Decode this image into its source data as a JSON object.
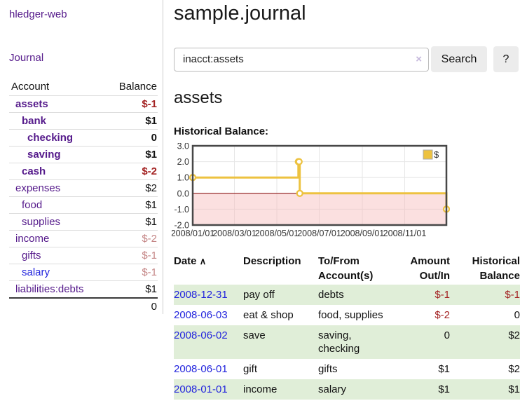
{
  "app": {
    "title": "hledger-web"
  },
  "sidebar": {
    "journal_link": "Journal",
    "accounts": {
      "header": {
        "account": "Account",
        "balance": "Balance"
      },
      "rows": [
        {
          "name": "assets",
          "balance": "$-1"
        },
        {
          "name": "bank",
          "balance": "$1"
        },
        {
          "name": "checking",
          "balance": "0"
        },
        {
          "name": "saving",
          "balance": "$1"
        },
        {
          "name": "cash",
          "balance": "$-2"
        },
        {
          "name": "expenses",
          "balance": "$2"
        },
        {
          "name": "food",
          "balance": "$1"
        },
        {
          "name": "supplies",
          "balance": "$1"
        },
        {
          "name": "income",
          "balance": "$-2"
        },
        {
          "name": "gifts",
          "balance": "$-1"
        },
        {
          "name": "salary",
          "balance": "$-1"
        },
        {
          "name": "liabilities:debts",
          "balance": "$1"
        }
      ],
      "total": "0"
    }
  },
  "header": {
    "title": "sample.journal"
  },
  "search": {
    "value": "inacct:assets",
    "clear_icon": "×",
    "search_button": "Search",
    "help_button": "?"
  },
  "account_page": {
    "heading": "assets",
    "chart_title": "Historical Balance:"
  },
  "chart_data": {
    "type": "line",
    "step": true,
    "grid": true,
    "legend_position": "top-right",
    "series": [
      {
        "name": "$",
        "color": "#edc240",
        "points": [
          [
            "2008-01-01",
            1
          ],
          [
            "2008-06-01",
            2
          ],
          [
            "2008-06-02",
            2
          ],
          [
            "2008-06-03",
            0
          ],
          [
            "2008-12-31",
            -1
          ]
        ]
      }
    ],
    "x_range": [
      "2008-01-01",
      "2008-12-31"
    ],
    "ylim": [
      -2,
      3
    ],
    "x_ticks": [
      "2008/01/01",
      "2008/03/01",
      "2008/05/01",
      "2008/07/01",
      "2008/09/01",
      "2008/11/01"
    ],
    "y_ticks": [
      3.0,
      2.0,
      1.0,
      0.0,
      -1.0,
      -2.0
    ],
    "negative_fill": "#f6baba",
    "zero_line_color": "#8c1717"
  },
  "register": {
    "columns": [
      "Date",
      "Description",
      "To/From Account(s)",
      "Amount Out/In",
      "Historical Balance"
    ],
    "sort_icon": "∧",
    "rows": [
      {
        "date": "2008-12-31",
        "description": "pay off",
        "accounts": "debts",
        "amount": "$-1",
        "balance": "$-1"
      },
      {
        "date": "2008-06-03",
        "description": "eat & shop",
        "accounts": "food, supplies",
        "amount": "$-2",
        "balance": "0"
      },
      {
        "date": "2008-06-02",
        "description": "save",
        "accounts": "saving, checking",
        "amount": "0",
        "balance": "$2"
      },
      {
        "date": "2008-06-01",
        "description": "gift",
        "accounts": "gifts",
        "amount": "$1",
        "balance": "$2"
      },
      {
        "date": "2008-01-01",
        "description": "income",
        "accounts": "salary",
        "amount": "$1",
        "balance": "$1"
      }
    ]
  }
}
